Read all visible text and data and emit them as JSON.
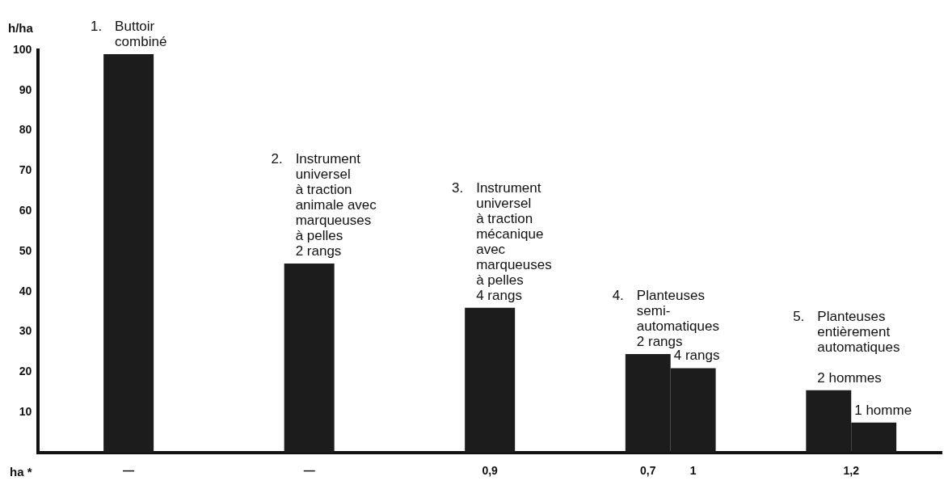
{
  "chart_data": {
    "type": "bar",
    "ylabel": "h/ha",
    "xlabel": "ha *",
    "categories": [
      "1. Buttoir\ncombiné",
      "2. Instrument\nuniversel\nà traction\nanimale avec\nmarqueuses\nà pelles\n2 rangs",
      "3. Instrument\nuniversel\nà traction\nmécanique\navec\nmarqueuses\nà pelles\n4 rangs",
      "4. Planteuses\nsemi-\nautomatiques\n2 rangs",
      "5. Planteuses\nentièrement\nautomatiques\n\n2 hommes"
    ],
    "series": [
      {
        "color": "#1c1c1c",
        "values": [
          99,
          47,
          36,
          24.5,
          15.5
        ]
      },
      {
        "color": "#1c1c1c",
        "values": [
          null,
          null,
          null,
          21,
          7.5
        ]
      }
    ],
    "annotations": [
      {
        "text": "4 rangs",
        "x": "4. Planteuses\nsemi-\nautomatiques\n2 rangs",
        "y": 21
      },
      {
        "text": "1 homme",
        "x": "5. Planteuses\nentièrement\nautomatiques\n\n2 hommes",
        "y": 7.5
      },
      "—",
      "—",
      "0,9",
      "0,7",
      "1",
      "1,2"
    ],
    "ylim": [
      0,
      100
    ],
    "yticks": [
      10,
      20,
      30,
      40,
      50,
      60,
      70,
      80,
      90,
      100
    ],
    "grid": false,
    "legend": false
  }
}
